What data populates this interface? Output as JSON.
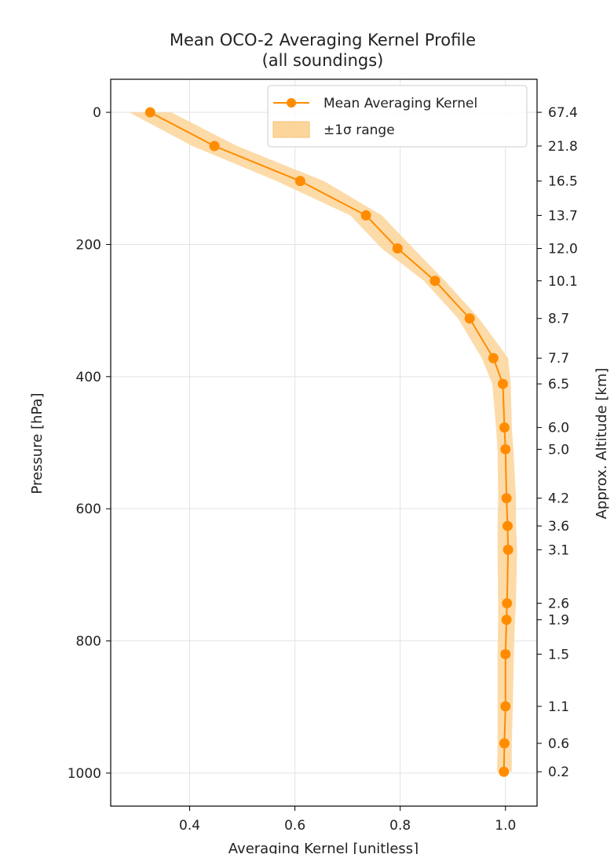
{
  "chart_data": {
    "type": "line",
    "title": "Mean OCO-2 Averaging Kernel Profile",
    "subtitle": "(all soundings)",
    "xlabel": "Averaging Kernel [unitless]",
    "ylabel": "Pressure [hPa]",
    "y2label": "Approx. Altitude [km]",
    "xlim": [
      0.25,
      1.06
    ],
    "ylim": [
      1050,
      -50
    ],
    "y_inverted": true,
    "x_ticks": [
      "0.4",
      "0.6",
      "0.8",
      "1.0"
    ],
    "y_ticks": [
      "0",
      "200",
      "400",
      "600",
      "800",
      "1000"
    ],
    "grid": true,
    "legend_position": "top-right",
    "series": [
      {
        "name": "Mean Averaging Kernel",
        "color": "#ff8c00",
        "marker": "circle",
        "points": [
          {
            "x": 0.325,
            "y": 0
          },
          {
            "x": 0.447,
            "y": 51
          },
          {
            "x": 0.61,
            "y": 104
          },
          {
            "x": 0.735,
            "y": 156
          },
          {
            "x": 0.795,
            "y": 206
          },
          {
            "x": 0.866,
            "y": 255
          },
          {
            "x": 0.932,
            "y": 312
          },
          {
            "x": 0.977,
            "y": 372
          },
          {
            "x": 0.995,
            "y": 411
          },
          {
            "x": 0.998,
            "y": 477
          },
          {
            "x": 1.0,
            "y": 510
          },
          {
            "x": 1.002,
            "y": 584
          },
          {
            "x": 1.004,
            "y": 626
          },
          {
            "x": 1.005,
            "y": 662
          },
          {
            "x": 1.003,
            "y": 743
          },
          {
            "x": 1.002,
            "y": 768
          },
          {
            "x": 1.0,
            "y": 820
          },
          {
            "x": 1.0,
            "y": 899
          },
          {
            "x": 0.998,
            "y": 955
          },
          {
            "x": 0.997,
            "y": 998
          }
        ]
      }
    ],
    "band": {
      "name": "±1σ range",
      "color": "#fbd59a",
      "upper": [
        0.365,
        0.49,
        0.655,
        0.765,
        0.825,
        0.885,
        0.95,
        1.005,
        1.01,
        1.012,
        1.015,
        1.02,
        1.02,
        1.022,
        1.02,
        1.018,
        1.016,
        1.014,
        1.012,
        1.012
      ],
      "lower": [
        0.285,
        0.405,
        0.565,
        0.705,
        0.765,
        0.845,
        0.91,
        0.955,
        0.975,
        0.982,
        0.985,
        0.986,
        0.985,
        0.985,
        0.986,
        0.986,
        0.985,
        0.985,
        0.985,
        0.984
      ]
    },
    "altitude_ticks": [
      {
        "pressure": 0,
        "label": "67.4"
      },
      {
        "pressure": 51,
        "label": "21.8"
      },
      {
        "pressure": 104,
        "label": "16.5"
      },
      {
        "pressure": 156,
        "label": "13.7"
      },
      {
        "pressure": 206,
        "label": "12.0"
      },
      {
        "pressure": 255,
        "label": "10.1"
      },
      {
        "pressure": 312,
        "label": "8.7"
      },
      {
        "pressure": 372,
        "label": "7.7"
      },
      {
        "pressure": 411,
        "label": "6.5"
      },
      {
        "pressure": 477,
        "label": "6.0"
      },
      {
        "pressure": 510,
        "label": "5.0"
      },
      {
        "pressure": 584,
        "label": "4.2"
      },
      {
        "pressure": 626,
        "label": "3.6"
      },
      {
        "pressure": 662,
        "label": "3.1"
      },
      {
        "pressure": 743,
        "label": "2.6"
      },
      {
        "pressure": 768,
        "label": "1.9"
      },
      {
        "pressure": 820,
        "label": "1.5"
      },
      {
        "pressure": 899,
        "label": "1.1"
      },
      {
        "pressure": 955,
        "label": "0.6"
      },
      {
        "pressure": 998,
        "label": "0.2"
      }
    ]
  }
}
